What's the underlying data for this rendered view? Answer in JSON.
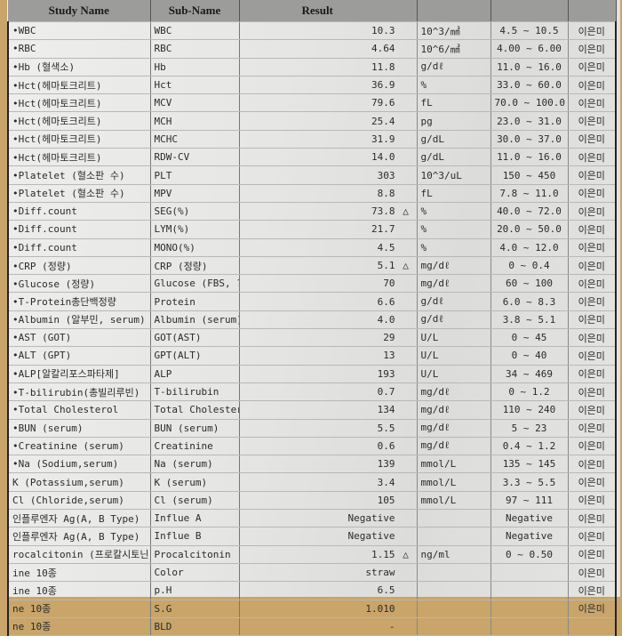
{
  "header": {
    "study_name": "Study Name",
    "sub_name": "Sub-Name",
    "result": "Result",
    "unit": "",
    "reference": "",
    "reporter": ""
  },
  "rows": [
    {
      "study": "•WBC",
      "sub": "WBC",
      "result": "10.3",
      "flag": "",
      "unit": "10^3/㎣",
      "ref": "4.5 ~ 10.5",
      "by": "이은미"
    },
    {
      "study": "•RBC",
      "sub": "RBC",
      "result": "4.64",
      "flag": "",
      "unit": "10^6/㎣",
      "ref": "4.00 ~ 6.00",
      "by": "이은미"
    },
    {
      "study": "•Hb (혈색소)",
      "sub": "Hb",
      "result": "11.8",
      "flag": "",
      "unit": "g/dℓ",
      "ref": "11.0 ~ 16.0",
      "by": "이은미"
    },
    {
      "study": "•Hct(헤마토크리트)",
      "sub": "Hct",
      "result": "36.9",
      "flag": "",
      "unit": "%",
      "ref": "33.0 ~ 60.0",
      "by": "이은미"
    },
    {
      "study": "•Hct(헤마토크리트)",
      "sub": "MCV",
      "result": "79.6",
      "flag": "",
      "unit": "fL",
      "ref": "70.0 ~ 100.0",
      "by": "이은미"
    },
    {
      "study": "•Hct(헤마토크리트)",
      "sub": "MCH",
      "result": "25.4",
      "flag": "",
      "unit": "pg",
      "ref": "23.0 ~ 31.0",
      "by": "이은미"
    },
    {
      "study": "•Hct(헤마토크리트)",
      "sub": "MCHC",
      "result": "31.9",
      "flag": "",
      "unit": "g/dL",
      "ref": "30.0 ~ 37.0",
      "by": "이은미"
    },
    {
      "study": "•Hct(헤마토크리트)",
      "sub": "RDW-CV",
      "result": "14.0",
      "flag": "",
      "unit": "g/dL",
      "ref": "11.0 ~ 16.0",
      "by": "이은미"
    },
    {
      "study": "•Platelet (혈소판 수)",
      "sub": "PLT",
      "result": "303",
      "flag": "",
      "unit": "10^3/uL",
      "ref": "150 ~ 450",
      "by": "이은미"
    },
    {
      "study": "•Platelet (혈소판 수)",
      "sub": "MPV",
      "result": "8.8",
      "flag": "",
      "unit": "fL",
      "ref": "7.8 ~ 11.0",
      "by": "이은미"
    },
    {
      "study": "•Diff.count",
      "sub": "SEG(%)",
      "result": "73.8",
      "flag": "△",
      "unit": "%",
      "ref": "40.0 ~ 72.0",
      "by": "이은미"
    },
    {
      "study": "•Diff.count",
      "sub": "LYM(%)",
      "result": "21.7",
      "flag": "",
      "unit": "%",
      "ref": "20.0 ~ 50.0",
      "by": "이은미"
    },
    {
      "study": "•Diff.count",
      "sub": "MONO(%)",
      "result": "4.5",
      "flag": "",
      "unit": "%",
      "ref": "4.0 ~ 12.0",
      "by": "이은미"
    },
    {
      "study": "•CRP (정량)",
      "sub": "CRP (정량)",
      "result": "5.1",
      "flag": "△",
      "unit": "mg/dℓ",
      "ref": "0 ~ 0.4",
      "by": "이은미"
    },
    {
      "study": "•Glucose (정량)",
      "sub": "Glucose (FBS, ?",
      "result": "70",
      "flag": "",
      "unit": "mg/dℓ",
      "ref": "60 ~ 100",
      "by": "이은미"
    },
    {
      "study": "•T-Protein총단백정량",
      "sub": "Protein",
      "result": "6.6",
      "flag": "",
      "unit": "g/dℓ",
      "ref": "6.0 ~ 8.3",
      "by": "이은미"
    },
    {
      "study": "•Albumin (알부민, serum)",
      "sub": "Albumin (serum)",
      "result": "4.0",
      "flag": "",
      "unit": "g/dℓ",
      "ref": "3.8 ~ 5.1",
      "by": "이은미"
    },
    {
      "study": "•AST (GOT)",
      "sub": "GOT(AST)",
      "result": "29",
      "flag": "",
      "unit": "U/L",
      "ref": "0 ~ 45",
      "by": "이은미"
    },
    {
      "study": "•ALT (GPT)",
      "sub": "GPT(ALT)",
      "result": "13",
      "flag": "",
      "unit": "U/L",
      "ref": "0 ~ 40",
      "by": "이은미"
    },
    {
      "study": "•ALP[알칼리포스파타제]",
      "sub": "ALP",
      "result": "193",
      "flag": "",
      "unit": "U/L",
      "ref": "34 ~ 469",
      "by": "이은미"
    },
    {
      "study": "•T-bilirubin(총빌리루빈)",
      "sub": "T-bilirubin",
      "result": "0.7",
      "flag": "",
      "unit": "mg/dℓ",
      "ref": "0 ~ 1.2",
      "by": "이은미"
    },
    {
      "study": "•Total Cholesterol",
      "sub": "Total Cholester",
      "result": "134",
      "flag": "",
      "unit": "mg/dℓ",
      "ref": "110 ~ 240",
      "by": "이은미"
    },
    {
      "study": "•BUN (serum)",
      "sub": "BUN (serum)",
      "result": "5.5",
      "flag": "",
      "unit": "mg/dℓ",
      "ref": "5 ~ 23",
      "by": "이은미"
    },
    {
      "study": "•Creatinine (serum)",
      "sub": "Creatinine",
      "result": "0.6",
      "flag": "",
      "unit": "mg/dℓ",
      "ref": "0.4 ~ 1.2",
      "by": "이은미"
    },
    {
      "study": "•Na (Sodium,serum)",
      "sub": "Na (serum)",
      "result": "139",
      "flag": "",
      "unit": "mmol/L",
      "ref": "135 ~ 145",
      "by": "이은미"
    },
    {
      "study": "K (Potassium,serum)",
      "sub": "K (serum)",
      "result": "3.4",
      "flag": "",
      "unit": "mmol/L",
      "ref": "3.3 ~ 5.5",
      "by": "이은미"
    },
    {
      "study": "Cl (Chloride,serum)",
      "sub": "Cl (serum)",
      "result": "105",
      "flag": "",
      "unit": "mmol/L",
      "ref": "97 ~ 111",
      "by": "이은미"
    },
    {
      "study": "인플루엔자 Ag(A, B Type)",
      "sub": "Influe A",
      "result": "Negative",
      "flag": "",
      "unit": "",
      "ref": "Negative",
      "by": "이은미"
    },
    {
      "study": "인플루엔자 Ag(A, B Type)",
      "sub": "Influe B",
      "result": "Negative",
      "flag": "",
      "unit": "",
      "ref": "Negative",
      "by": "이은미"
    },
    {
      "study": "rocalcitonin (프로칼시토닌,",
      "sub": "Procalcitonin",
      "result": "1.15",
      "flag": "△",
      "unit": "ng/ml",
      "ref": "0 ~ 0.50",
      "by": "이은미"
    },
    {
      "study": "ine 10종",
      "sub": "Color",
      "result": "straw",
      "flag": "",
      "unit": "",
      "ref": "",
      "by": "이은미"
    },
    {
      "study": "ine 10종",
      "sub": "p.H",
      "result": "6.5",
      "flag": "",
      "unit": "",
      "ref": "",
      "by": "이은미"
    },
    {
      "study": "ne 10종",
      "sub": "S.G",
      "result": "1.010",
      "flag": "",
      "unit": "",
      "ref": "",
      "by": "이은미"
    },
    {
      "study": "ne 10종",
      "sub": "BLD",
      "result": "-",
      "flag": "",
      "unit": "",
      "ref": "",
      "by": ""
    }
  ]
}
